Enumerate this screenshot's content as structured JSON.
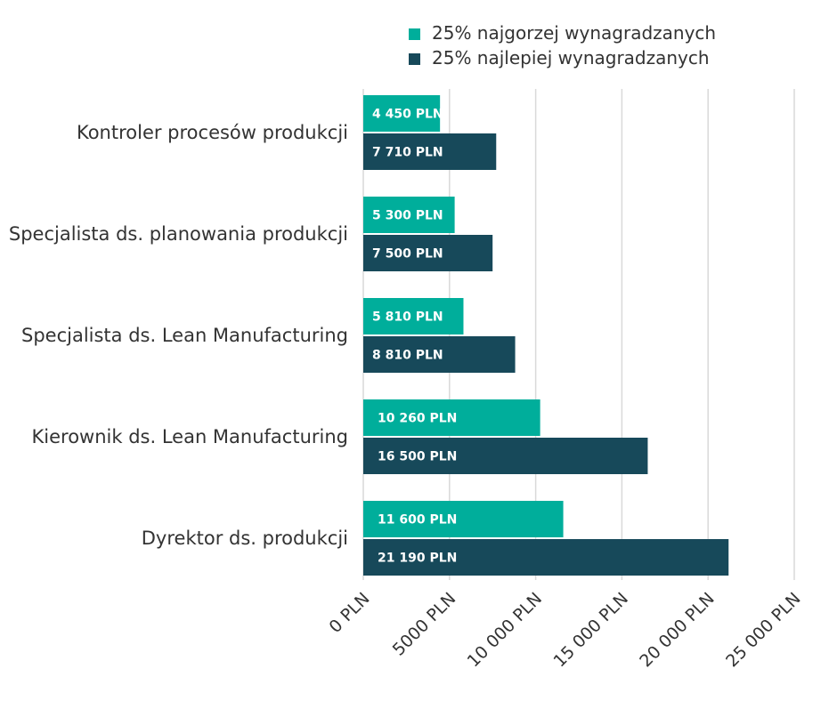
{
  "chart_data": {
    "type": "bar",
    "orientation": "horizontal",
    "categories": [
      "Kontroler procesów produkcji",
      "Specjalista ds. planowania produkcji",
      "Specjalista ds. Lean Manufacturing",
      "Kierownik ds. Lean Manufacturing",
      "Dyrektor ds. produkcji"
    ],
    "series": [
      {
        "name": "25% najgorzej wynagradzanych",
        "color": "#00ae9b",
        "values": [
          4450,
          5300,
          5810,
          10260,
          11600
        ],
        "labels": [
          "4 450 PLN",
          "5 300 PLN",
          "5 810 PLN",
          "10 260 PLN",
          "11 600 PLN"
        ]
      },
      {
        "name": "25% najlepiej wynagradzanych",
        "color": "#17495a",
        "values": [
          7710,
          7500,
          8810,
          16500,
          21190
        ],
        "labels": [
          "7 710 PLN",
          "7 500 PLN",
          "8 810 PLN",
          "16 500 PLN",
          "21 190 PLN"
        ]
      }
    ],
    "xlim": [
      0,
      25000
    ],
    "xticks": [
      0,
      5000,
      10000,
      15000,
      20000,
      25000
    ],
    "xtick_labels": [
      "0 PLN",
      "5000 PLN",
      "10 000 PLN",
      "15 000 PLN",
      "20 000 PLN",
      "25 000 PLN"
    ],
    "title": "",
    "xlabel": "",
    "ylabel": "",
    "grid": true,
    "legend_position": "top-center"
  }
}
